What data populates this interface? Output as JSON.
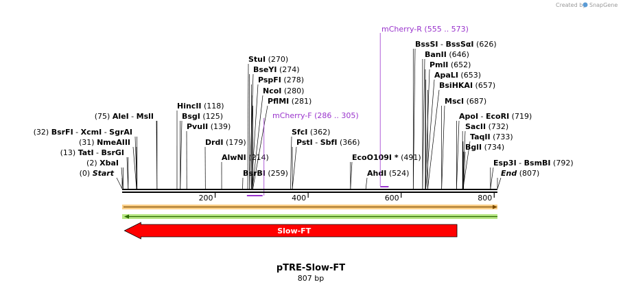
{
  "header": {
    "created_by": "Created by",
    "brand": "SnapGene"
  },
  "map": {
    "title": "pTRE-Slow-FT",
    "length_label": "807 bp",
    "length": 807,
    "ticks": [
      "200",
      "400",
      "600",
      "800"
    ]
  },
  "enzymes": [
    {
      "label": [
        "Esp3I",
        "BsmBI"
      ],
      "pos": "(792)",
      "site": 792
    },
    {
      "label": [
        "End"
      ],
      "pos": "(807)",
      "site": 807,
      "italic": true
    },
    {
      "label": [
        "BglI"
      ],
      "pos": "(734)",
      "site": 734
    },
    {
      "label": [
        "TaqII"
      ],
      "pos": "(733)",
      "site": 733
    },
    {
      "label": [
        "SacII"
      ],
      "pos": "(732)",
      "site": 732
    },
    {
      "label": [
        "ApoI",
        "EcoRI"
      ],
      "pos": "(719)",
      "site": 719
    },
    {
      "label": [
        "MscI"
      ],
      "pos": "(687)",
      "site": 687
    },
    {
      "label": [
        "BsiHKAI"
      ],
      "pos": "(657)",
      "site": 657
    },
    {
      "label": [
        "ApaLI"
      ],
      "pos": "(653)",
      "site": 653
    },
    {
      "label": [
        "PmlI"
      ],
      "pos": "(652)",
      "site": 652
    },
    {
      "label": [
        "BanII"
      ],
      "pos": "(646)",
      "site": 646
    },
    {
      "label": [
        "BssSI",
        "BssSαI"
      ],
      "pos": "(626)",
      "site": 626
    },
    {
      "label": [
        "AhdI"
      ],
      "pos": "(524)",
      "site": 524
    },
    {
      "label": [
        "EcoO109I *"
      ],
      "pos": "(491)",
      "site": 491
    },
    {
      "label": [
        "PstI",
        "SbfI"
      ],
      "pos": "(366)",
      "site": 366
    },
    {
      "label": [
        "SfcI"
      ],
      "pos": "(362)",
      "site": 362
    },
    {
      "label": [
        "BsrBI"
      ],
      "pos": "(259)",
      "site": 259
    },
    {
      "label": [
        "PflMI"
      ],
      "pos": "(281)",
      "site": 281
    },
    {
      "label": [
        "NcoI"
      ],
      "pos": "(280)",
      "site": 280
    },
    {
      "label": [
        "PspFI"
      ],
      "pos": "(278)",
      "site": 278
    },
    {
      "label": [
        "BseYI"
      ],
      "pos": "(274)",
      "site": 274
    },
    {
      "label": [
        "StuI"
      ],
      "pos": "(270)",
      "site": 270
    },
    {
      "label": [
        "AlwNI"
      ],
      "pos": "(214)",
      "site": 214
    },
    {
      "label": [
        "DrdI"
      ],
      "pos": "(179)",
      "site": 179
    },
    {
      "label": [
        "PvuII"
      ],
      "pos": "(139)",
      "site": 139
    },
    {
      "label": [
        "BsgI"
      ],
      "pos": "(125)",
      "site": 125
    },
    {
      "label": [
        "HincII"
      ],
      "pos": "(118)",
      "site": 118
    },
    {
      "label": [
        "AleI",
        "MslI"
      ],
      "pos": "(75)",
      "site": 75,
      "posFirst": true
    },
    {
      "label": [
        "BsrFI",
        "XcmI",
        "SgrAI"
      ],
      "pos": "(32)",
      "site": 32,
      "posFirst": true
    },
    {
      "label": [
        "NmeAIII"
      ],
      "pos": "(31)",
      "site": 31,
      "posFirst": true
    },
    {
      "label": [
        "TatI",
        "BsrGI"
      ],
      "pos": "(13)",
      "site": 13,
      "posFirst": true
    },
    {
      "label": [
        "XbaI"
      ],
      "pos": "(2)",
      "site": 2,
      "posFirst": true
    },
    {
      "label": [
        "Start"
      ],
      "pos": "(0)",
      "site": 0,
      "posFirst": true,
      "italic": true
    }
  ],
  "primers": [
    {
      "name": "mCherry-R",
      "range": "(555 .. 573)",
      "start": 555,
      "end": 573,
      "strand": "top"
    },
    {
      "name": "mCherry-F",
      "range": "(286 .. 305)",
      "start": 286,
      "end": 305,
      "strand": "bottom"
    }
  ],
  "features": [
    {
      "name": "Slow-FT",
      "start": 5,
      "end": 720,
      "direction": "reverse",
      "color": "#ff0000"
    }
  ],
  "colors": {
    "primer": "#9933cc",
    "top_strand_bar": "#f5a623",
    "bottom_strand_bar": "#7ed321",
    "feature": "#ff0000"
  }
}
